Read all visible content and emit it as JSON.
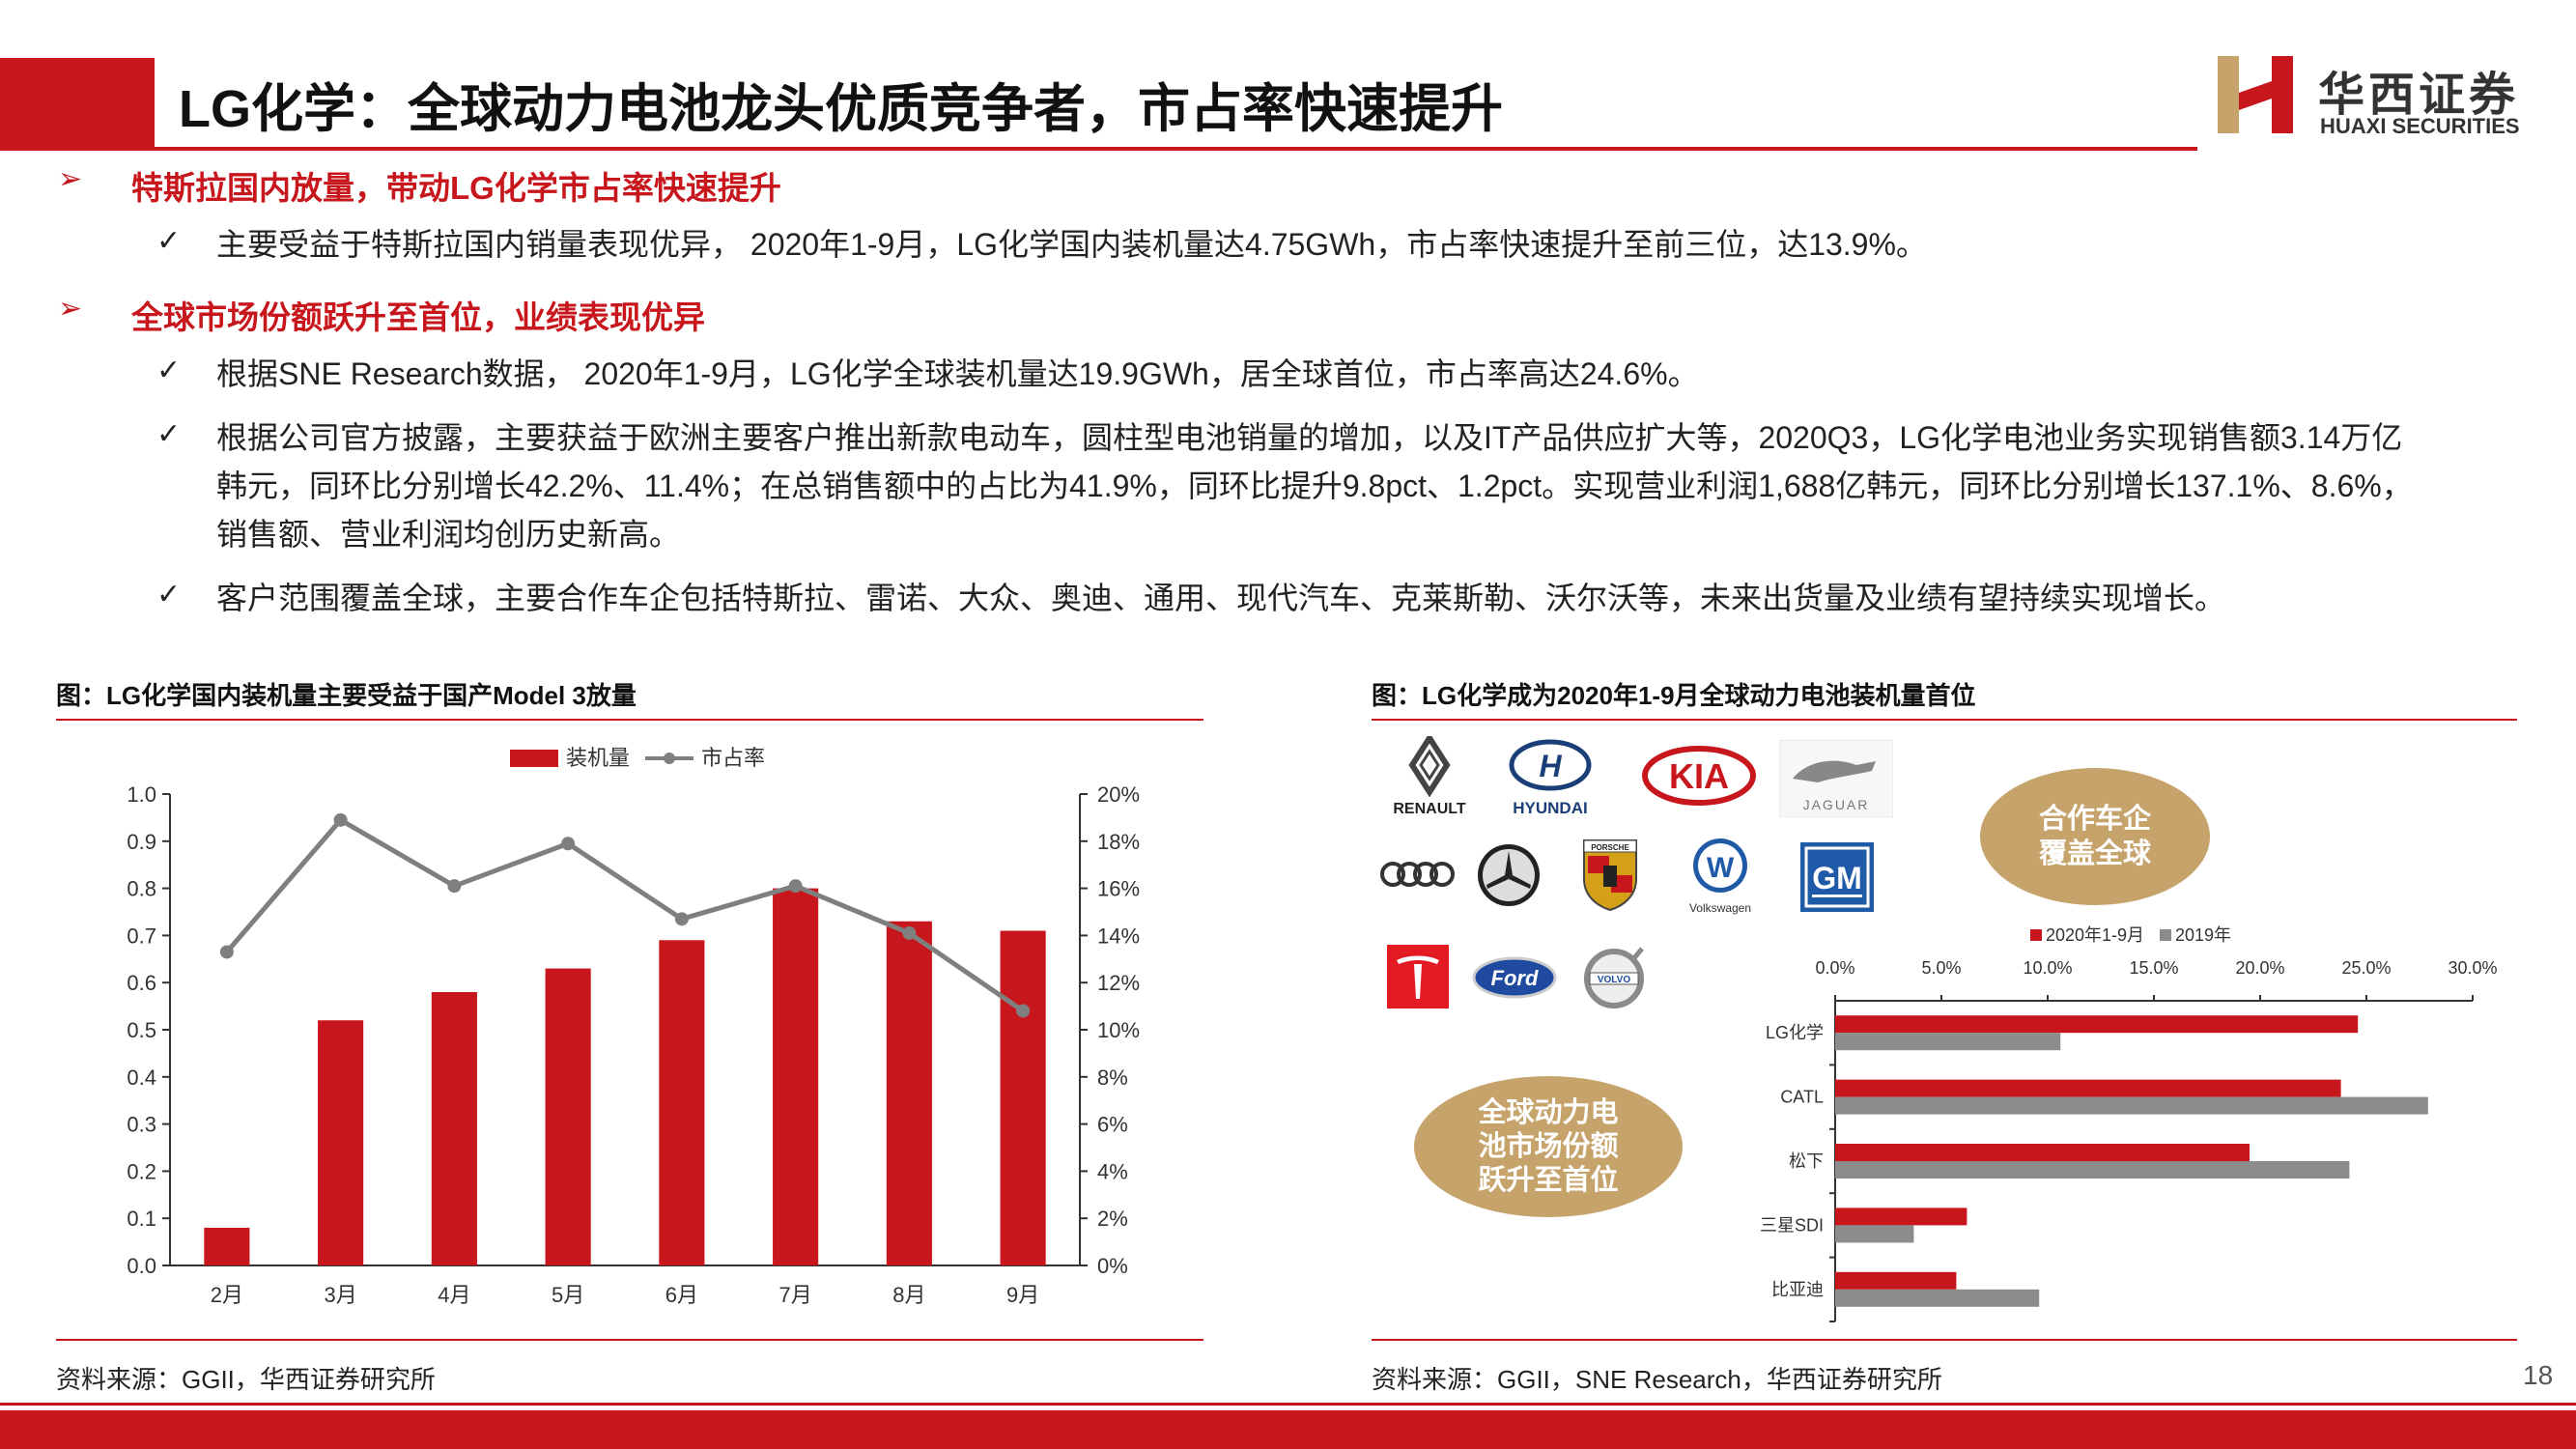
{
  "header": {
    "title": "LG化学：全球动力电池龙头优质竞争者，市占率快速提升",
    "logo_cn": "华西证券",
    "logo_en": "HUAXI SECURITIES",
    "brand_color": "#c8161d"
  },
  "sections": [
    {
      "heading": "特斯拉国内放量，带动LG化学市占率快速提升",
      "bullets": [
        [
          "主要受益于特斯拉国内销量表现优异， 2020年1-9月，LG化学国内装机量达4.75GWh，市占率快速提升至前三位，达13.9%。"
        ]
      ]
    },
    {
      "heading": "全球市场份额跃升至首位，业绩表现优异",
      "bullets": [
        [
          "根据SNE Research数据， 2020年1-9月，LG化学全球装机量达19.9GWh，居全球首位，市占率高达24.6%。"
        ],
        [
          "根据公司官方披露，主要获益于欧洲主要客户推出新款电动车，圆柱型电池销量的增加，以及IT产品供应扩大等，2020Q3，LG化学电池业务实现销售额3.14万亿",
          "韩元，同环比分别增长42.2%、11.4%；在总销售额中的占比为41.9%，同环比提升9.8pct、1.2pct。实现营业利润1,688亿韩元，同环比分别增长137.1%、8.6%，",
          "销售额、营业利润均创历史新高。"
        ],
        [
          "客户范围覆盖全球，主要合作车企包括特斯拉、雷诺、大众、奥迪、通用、现代汽车、克莱斯勒、沃尔沃等，未来出货量及业绩有望持续实现增长。"
        ]
      ]
    }
  ],
  "icons": {
    "heading_marker": "arrow-right-icon",
    "bullet_marker": "check-icon"
  },
  "figures": {
    "left": {
      "title": "图：LG化学国内装机量主要受益于国产Model 3放量",
      "source": "资料来源：GGII，华西证券研究所"
    },
    "right": {
      "title": "图：LG化学成为2020年1-9月全球动力电池装机量首位",
      "source": "资料来源：GGII，SNE Research，华西证券研究所",
      "bubble_top": [
        "合作车企",
        "覆盖全球"
      ],
      "bubble_bottom": [
        "全球动力电",
        "池市场份额",
        "跃升至首位"
      ],
      "logos": {
        "renault": "RENAULT",
        "hyundai": "HYUNDAI",
        "kia": "KIA",
        "jaguar": "JAGUAR",
        "volkswagen": "Volkswagen",
        "gm": "GM",
        "ford": "Ford",
        "volvo": "VOLVO",
        "porsche": "PORSCHE"
      }
    }
  },
  "chart_data": [
    {
      "type": "bar+line",
      "categories": [
        "2月",
        "3月",
        "4月",
        "5月",
        "6月",
        "7月",
        "8月",
        "9月"
      ],
      "series": [
        {
          "name": "装机量",
          "type": "bar",
          "axis": "left",
          "color": "#c8161d",
          "values": [
            0.08,
            0.52,
            0.58,
            0.63,
            0.69,
            0.8,
            0.73,
            0.71
          ]
        },
        {
          "name": "市占率",
          "type": "line",
          "axis": "right",
          "color": "#7f7f7f",
          "values": [
            13.3,
            18.9,
            16.1,
            17.9,
            14.7,
            16.1,
            14.1,
            10.8
          ]
        }
      ],
      "y_left": {
        "min": 0,
        "max": 1.0,
        "ticks": [
          "0.0",
          "0.1",
          "0.2",
          "0.3",
          "0.4",
          "0.5",
          "0.6",
          "0.7",
          "0.8",
          "0.9",
          "1.0"
        ]
      },
      "y_right": {
        "min": 0,
        "max": 20,
        "ticks": [
          "0%",
          "2%",
          "4%",
          "6%",
          "8%",
          "10%",
          "12%",
          "14%",
          "16%",
          "18%",
          "20%"
        ]
      },
      "legend": "top-center",
      "grid": false
    },
    {
      "type": "bar",
      "orientation": "horizontal",
      "categories": [
        "LG化学",
        "CATL",
        "松下",
        "三星SDI",
        "比亚迪"
      ],
      "series": [
        {
          "name": "2020年1-9月",
          "color": "#c8161d",
          "values": [
            24.6,
            23.8,
            19.5,
            6.2,
            5.7
          ]
        },
        {
          "name": "2019年",
          "color": "#8c8c8c",
          "values": [
            10.6,
            27.9,
            24.2,
            3.7,
            9.6
          ]
        }
      ],
      "x_axis": {
        "min": 0,
        "max": 30,
        "ticks": [
          "0.0%",
          "5.0%",
          "10.0%",
          "15.0%",
          "20.0%",
          "25.0%",
          "30.0%"
        ],
        "position": "top"
      },
      "legend": "top-center",
      "grid": false
    }
  ]
}
